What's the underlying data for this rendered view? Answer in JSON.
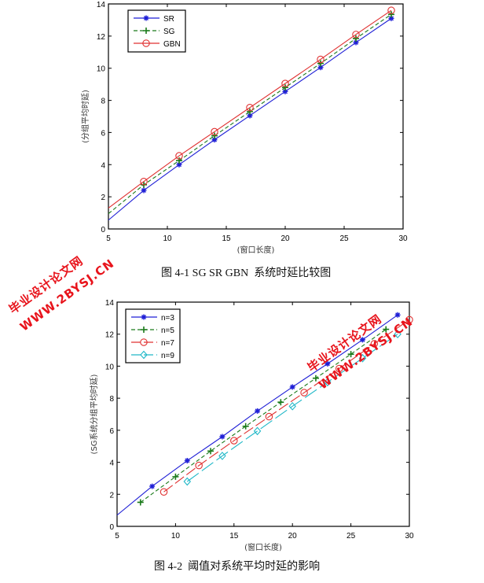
{
  "chart_data": [
    {
      "type": "line",
      "title": "",
      "caption": "图 4-1 SG SR GBN  系统时延比较图",
      "xlabel": "(窗口长度)",
      "ylabel": "(分组平均时延)",
      "xlim": [
        5,
        30
      ],
      "ylim": [
        0,
        14
      ],
      "xticks": [
        5,
        10,
        15,
        20,
        25,
        30
      ],
      "yticks": [
        0,
        2,
        4,
        6,
        8,
        10,
        12,
        14
      ],
      "legend_position": "top-left",
      "series": [
        {
          "name": "SR",
          "color": "#1f1fd6",
          "style": "solid",
          "marker": "star",
          "x": [
            5,
            8,
            11,
            14,
            17,
            20,
            23,
            26,
            29
          ],
          "y": [
            0.55,
            2.4,
            4.0,
            5.55,
            7.05,
            8.55,
            10.05,
            11.6,
            13.1
          ],
          "marker_from": 1
        },
        {
          "name": "SG",
          "color": "#1a7a1a",
          "style": "dashed",
          "marker": "plus",
          "x": [
            5,
            8,
            11,
            14,
            17,
            20,
            23,
            26,
            29
          ],
          "y": [
            0.95,
            2.75,
            4.25,
            5.8,
            7.3,
            8.8,
            10.3,
            11.85,
            13.35
          ],
          "marker_from": 1
        },
        {
          "name": "GBN",
          "color": "#e03030",
          "style": "solid",
          "marker": "circle",
          "x": [
            5,
            8,
            11,
            14,
            17,
            20,
            23,
            26,
            29
          ],
          "y": [
            1.3,
            2.95,
            4.55,
            6.05,
            7.55,
            9.05,
            10.55,
            12.1,
            13.6
          ],
          "marker_from": 1
        }
      ]
    },
    {
      "type": "line",
      "title": "",
      "caption": "图 4-2  阈值对系统平均时延的影响",
      "xlabel": "(窗口长度)",
      "ylabel": "(SG系统分组平均时延)",
      "xlim": [
        5,
        30
      ],
      "ylim": [
        0,
        14
      ],
      "xticks": [
        5,
        10,
        15,
        20,
        25,
        30
      ],
      "yticks": [
        0,
        2,
        4,
        6,
        8,
        10,
        12,
        14
      ],
      "legend_position": "top-left",
      "series": [
        {
          "name": "n=3",
          "color": "#1f1fd6",
          "style": "solid",
          "marker": "star",
          "x": [
            5,
            8,
            11,
            14,
            17,
            20,
            23,
            26,
            29
          ],
          "y": [
            0.7,
            2.5,
            4.1,
            5.6,
            7.2,
            8.7,
            10.15,
            11.65,
            13.2
          ],
          "marker_from": 1
        },
        {
          "name": "n=5",
          "color": "#1a7a1a",
          "style": "dashed",
          "marker": "plus",
          "x": [
            7,
            10,
            13,
            16,
            19,
            22,
            25,
            28
          ],
          "y": [
            1.5,
            3.1,
            4.7,
            6.25,
            7.75,
            9.25,
            10.75,
            12.3
          ],
          "marker_from": 0
        },
        {
          "name": "n=7",
          "color": "#e03030",
          "style": "dashdot",
          "marker": "circle",
          "x": [
            9,
            12,
            15,
            18,
            21,
            24,
            27,
            30
          ],
          "y": [
            2.15,
            3.8,
            5.35,
            6.85,
            8.35,
            9.85,
            11.4,
            12.9
          ],
          "marker_from": 0
        },
        {
          "name": "n=9",
          "color": "#20b8c8",
          "style": "longdash",
          "marker": "diamond",
          "x": [
            11,
            14,
            17,
            20,
            23,
            26,
            29
          ],
          "y": [
            2.8,
            4.4,
            5.95,
            7.5,
            9.0,
            10.5,
            12.0
          ],
          "marker_from": 0
        }
      ]
    }
  ],
  "watermarks": [
    {
      "cn": "毕业设计论文网",
      "url": "WWW.2BYSJ.CN"
    },
    {
      "cn": "毕业设计论文网",
      "url": "WWW.2BYSJ.CN"
    }
  ]
}
